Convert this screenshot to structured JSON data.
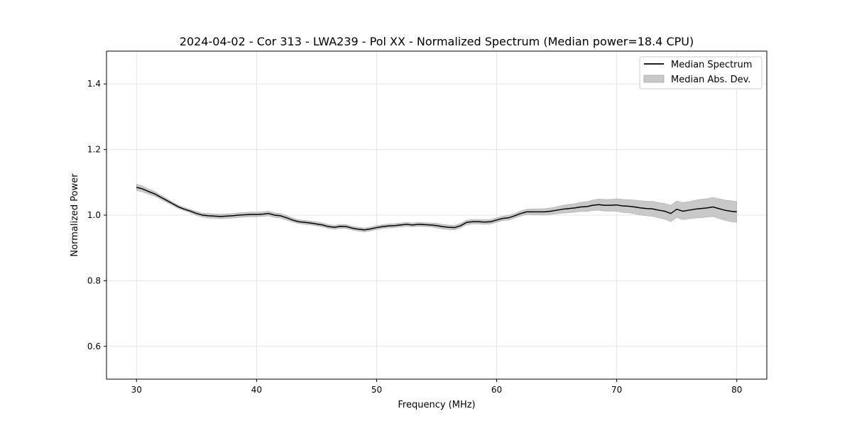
{
  "chart_data": {
    "type": "line",
    "title": "2024-04-02 - Cor 313 - LWA239 - Pol XX - Normalized Spectrum (Median power=18.4 CPU)",
    "xlabel": "Frequency (MHz)",
    "ylabel": "Normalized Power",
    "xlim": [
      27.5,
      82.5
    ],
    "ylim": [
      0.5,
      1.5
    ],
    "xticks": [
      30,
      40,
      50,
      60,
      70,
      80
    ],
    "xtick_labels": [
      "30",
      "40",
      "50",
      "60",
      "70",
      "80"
    ],
    "yticks": [
      0.6,
      0.8,
      1.0,
      1.2,
      1.4
    ],
    "ytick_labels": [
      "0.6",
      "0.8",
      "1.0",
      "1.2",
      "1.4"
    ],
    "grid": true,
    "legend": {
      "position": "top-right",
      "entries": [
        {
          "label": "Median Spectrum",
          "style": "line",
          "color": "#000000"
        },
        {
          "label": "Median Abs. Dev.",
          "style": "band",
          "color": "#c8c8c8"
        }
      ]
    },
    "series": [
      {
        "name": "Median Spectrum",
        "color": "#000000",
        "x": [
          30,
          30.5,
          31,
          31.5,
          32,
          32.5,
          33,
          33.5,
          34,
          34.5,
          35,
          35.5,
          36,
          36.5,
          37,
          37.5,
          38,
          38.5,
          39,
          39.5,
          40,
          40.5,
          41,
          41.5,
          42,
          42.5,
          43,
          43.5,
          44,
          44.5,
          45,
          45.5,
          46,
          46.5,
          47,
          47.5,
          48,
          48.5,
          49,
          49.5,
          50,
          50.5,
          51,
          51.5,
          52,
          52.5,
          53,
          53.5,
          54,
          54.5,
          55,
          55.5,
          56,
          56.5,
          57,
          57.5,
          58,
          58.5,
          59,
          59.5,
          60,
          60.5,
          61,
          61.5,
          62,
          62.5,
          63,
          63.5,
          64,
          64.5,
          65,
          65.5,
          66,
          66.5,
          67,
          67.5,
          68,
          68.5,
          69,
          69.5,
          70,
          70.5,
          71,
          71.5,
          72,
          72.5,
          73,
          73.5,
          74,
          74.5,
          75,
          75.5,
          76,
          76.5,
          77,
          77.5,
          78,
          78.5,
          79,
          79.5,
          80
        ],
        "y": [
          1.085,
          1.08,
          1.072,
          1.065,
          1.055,
          1.045,
          1.035,
          1.025,
          1.018,
          1.012,
          1.005,
          1.0,
          0.998,
          0.997,
          0.996,
          0.997,
          0.998,
          1.0,
          1.001,
          1.002,
          1.002,
          1.003,
          1.005,
          1.0,
          0.998,
          0.992,
          0.985,
          0.98,
          0.978,
          0.976,
          0.973,
          0.97,
          0.965,
          0.963,
          0.966,
          0.965,
          0.96,
          0.957,
          0.955,
          0.958,
          0.962,
          0.965,
          0.967,
          0.968,
          0.97,
          0.972,
          0.97,
          0.972,
          0.971,
          0.97,
          0.968,
          0.965,
          0.963,
          0.962,
          0.968,
          0.978,
          0.98,
          0.98,
          0.979,
          0.98,
          0.985,
          0.99,
          0.992,
          0.998,
          1.005,
          1.01,
          1.01,
          1.01,
          1.01,
          1.012,
          1.015,
          1.018,
          1.02,
          1.022,
          1.025,
          1.026,
          1.03,
          1.032,
          1.03,
          1.03,
          1.031,
          1.028,
          1.027,
          1.025,
          1.022,
          1.02,
          1.019,
          1.015,
          1.012,
          1.005,
          1.018,
          1.012,
          1.015,
          1.018,
          1.02,
          1.022,
          1.025,
          1.02,
          1.015,
          1.012,
          1.01
        ],
        "mad": [
          0.01,
          0.009,
          0.008,
          0.007,
          0.006,
          0.006,
          0.005,
          0.005,
          0.005,
          0.005,
          0.006,
          0.006,
          0.007,
          0.007,
          0.007,
          0.007,
          0.007,
          0.007,
          0.007,
          0.007,
          0.007,
          0.007,
          0.007,
          0.007,
          0.007,
          0.007,
          0.006,
          0.006,
          0.006,
          0.006,
          0.006,
          0.006,
          0.006,
          0.006,
          0.006,
          0.006,
          0.006,
          0.006,
          0.006,
          0.006,
          0.006,
          0.006,
          0.006,
          0.006,
          0.006,
          0.006,
          0.006,
          0.006,
          0.006,
          0.006,
          0.007,
          0.007,
          0.007,
          0.007,
          0.007,
          0.007,
          0.007,
          0.007,
          0.007,
          0.007,
          0.007,
          0.007,
          0.007,
          0.007,
          0.008,
          0.008,
          0.009,
          0.009,
          0.01,
          0.01,
          0.011,
          0.012,
          0.013,
          0.013,
          0.014,
          0.015,
          0.016,
          0.017,
          0.018,
          0.018,
          0.019,
          0.02,
          0.02,
          0.021,
          0.022,
          0.022,
          0.023,
          0.023,
          0.024,
          0.025,
          0.025,
          0.026,
          0.026,
          0.027,
          0.028,
          0.028,
          0.029,
          0.03,
          0.031,
          0.032,
          0.032
        ]
      }
    ]
  }
}
